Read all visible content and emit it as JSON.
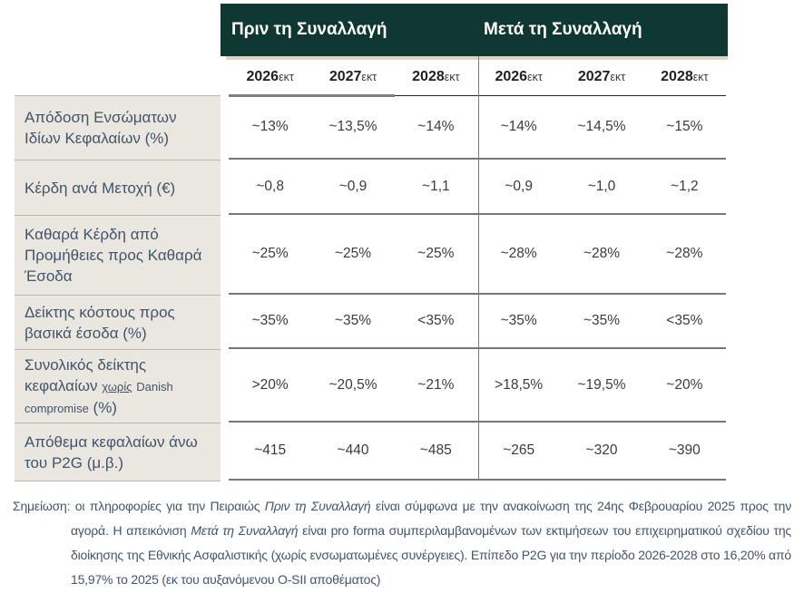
{
  "header": {
    "before_title": "Πριν τη Συναλλαγή",
    "after_title": "Μετά τη Συναλλαγή"
  },
  "columns": [
    {
      "year": "2026",
      "suffix": "εκτ"
    },
    {
      "year": "2027",
      "suffix": "εκτ"
    },
    {
      "year": "2028",
      "suffix": "εκτ"
    },
    {
      "year": "2026",
      "suffix": "εκτ"
    },
    {
      "year": "2027",
      "suffix": "εκτ"
    },
    {
      "year": "2028",
      "suffix": "εκτ"
    }
  ],
  "rows": [
    {
      "label": "Απόδοση Ενσώματων Ιδίων Κεφαλαίων (%)",
      "values": [
        "~13%",
        "~13,5%",
        "~14%",
        "~14%",
        "~14,5%",
        "~15%"
      ]
    },
    {
      "label": "Κέρδη ανά Μετοχή (€)",
      "values": [
        "~0,8",
        "~0,9",
        "~1,1",
        "~0,9",
        "~1,0",
        "~1,2"
      ]
    },
    {
      "label": "Καθαρά Κέρδη από Προμήθειες προς Καθαρά Έσοδα",
      "values": [
        "~25%",
        "~25%",
        "~25%",
        "~28%",
        "~28%",
        "~28%"
      ]
    },
    {
      "label": "Δείκτης κόστους προς βασικά έσοδα (%)",
      "values": [
        "~35%",
        "~35%",
        "<35%",
        "~35%",
        "~35%",
        "<35%"
      ]
    },
    {
      "label_prefix": "Συνολικός δείκτης κεφαλαίων",
      "label_small_underlined": "χωρίς",
      "label_small": "Danish compromise",
      "label_suffix": "(%)",
      "values": [
        ">20%",
        "~20,5%",
        "~21%",
        ">18,5%",
        "~19,5%",
        "~20%"
      ]
    },
    {
      "label": "Απόθεμα κεφαλαίων άνω του P2G (μ.β.)",
      "values": [
        "~415",
        "~440",
        "~485",
        "~265",
        "~320",
        "~390"
      ]
    }
  ],
  "footnote": {
    "part1": "Σημείωση: οι πληροφορίες για την Πειραιώς ",
    "italic1": "Πριν τη Συναλλαγή",
    "part2": " είναι σύμφωνα με την ανακοίνωση της 24ης Φεβρουαρίου 2025 προς την αγορά. Η απεικόνιση ",
    "italic2": "Μετά τη Συναλλαγή",
    "part3": " είναι pro forma συμπεριλαμβανομένων των εκτιμήσεων του επιχειρηματικού σχεδίου της διοίκησης της Εθνικής Ασφαλιστικής (χωρίς ενσωματωμένες συνέργειες). Επίπεδο P2G για την περίοδο 2026-2028 στο 16,20% από 15,97% το 2025 (εκ του αυξανόμενου O-SII αποθέματος)"
  },
  "colors": {
    "header_green": "#0f3833",
    "label_background": "#e9e7e0",
    "accent_text": "#44546a"
  }
}
